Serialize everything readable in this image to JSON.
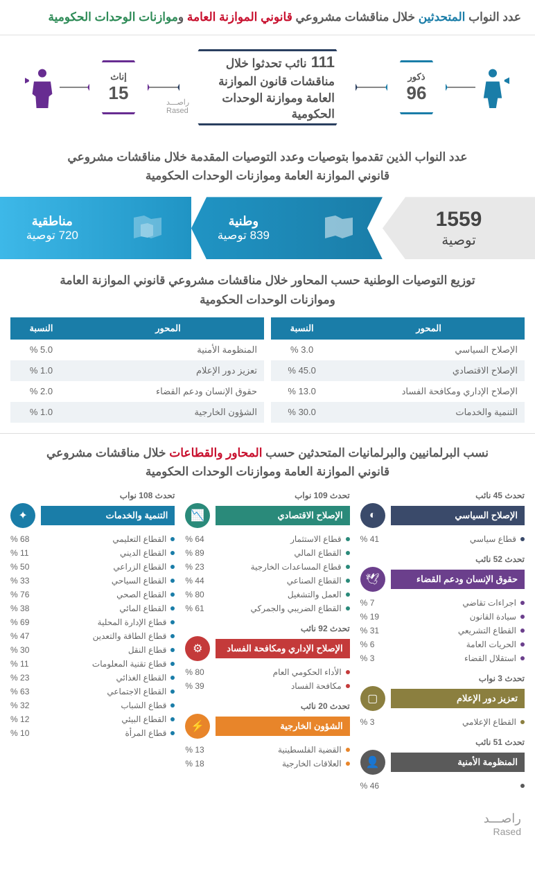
{
  "header": {
    "pre": "عدد النواب ",
    "highlight1": "المتحدثين",
    "mid": " خلال مناقشات مشروعي ",
    "highlight2": "قانوني الموازنة العامة",
    "and": " و",
    "highlight3": "موازنات الوحدات الحكومية"
  },
  "speakers": {
    "male_label": "ذكور",
    "male_count": "96",
    "female_label": "إناث",
    "female_count": "15",
    "center_count": "111 ",
    "center_text1": "نائب تحدثوا",
    "center_text2": " خلال مناقشات قانون الموازنة العامة وموازنة الوحدات الحكومية",
    "rased_ar": "راصـــد",
    "rased_en": "Rased"
  },
  "rec_header": {
    "pre": "عدد النواب الذين ",
    "hl1": "تقدموا بتوصيات",
    "mid": " وعدد التوصيات المقدمة خلال مناقشات مشروعي",
    "hl2": "قانوني الموازنة العامة",
    "and": " و",
    "hl3": "موازنات الوحدات الحكومية"
  },
  "recommendations": {
    "total": "1559",
    "total_label": "توصية",
    "national_label": "وطنية",
    "national_count": "839 توصية",
    "regional_label": "مناطقية",
    "regional_count": "720 توصية"
  },
  "dist_header": {
    "pre": "توزيع ",
    "hl1": "التوصيات الوطنية حسب المحاور",
    "mid": " خلال مناقشات مشروعي ",
    "hl2": "قانوني الموازنة العامة",
    "and": " و",
    "hl3": "موازنات الوحدات الحكومية"
  },
  "table_headers": {
    "axis": "المحور",
    "percent": "النسبة"
  },
  "table1": [
    {
      "axis": "الإصلاح السياسي",
      "pct": "3.0 %"
    },
    {
      "axis": "الإصلاح الاقتصادي",
      "pct": "45.0 %"
    },
    {
      "axis": "الإصلاح الإداري ومكافحة الفساد",
      "pct": "13.0 %"
    },
    {
      "axis": "التنمية والخدمات",
      "pct": "30.0 %"
    }
  ],
  "table2": [
    {
      "axis": "المنظومة الأمنية",
      "pct": "5.0 %"
    },
    {
      "axis": "تعزيز دور الإعلام",
      "pct": "1.0 %"
    },
    {
      "axis": "حقوق الإنسان ودعم القضاء",
      "pct": "2.0 %"
    },
    {
      "axis": "الشؤون الخارجية",
      "pct": "1.0 %"
    }
  ],
  "sectors_header": {
    "pre": "نسب البرلمانيين والبرلمانيات المتحدثين حسب ",
    "hl1": "المحاور والقطاعات",
    "mid": " خلال مناقشات مشروعي ",
    "hl2": "قانوني الموازنة العامة",
    "and": " و",
    "hl3": "موازنات الوحدات الحكومية"
  },
  "sections": {
    "political": {
      "count": "تحدث 45 نائب",
      "title": "الإصلاح السياسي",
      "items": [
        {
          "n": "قطاع سياسي",
          "p": "41 %"
        }
      ]
    },
    "hr": {
      "count": "تحدث 52 نائب",
      "title": "حقوق الإنسان ودعم القضاء",
      "items": [
        {
          "n": "اجراءات تقاضي",
          "p": "7 %"
        },
        {
          "n": "سيادة القانون",
          "p": "19 %"
        },
        {
          "n": "القطاع التشريعي",
          "p": "31 %"
        },
        {
          "n": "الحريات العامة",
          "p": "6 %"
        },
        {
          "n": "استقلال القضاء",
          "p": "3 %"
        }
      ]
    },
    "media": {
      "count": "تحدث 3 نواب",
      "title": "تعزيز دور الإعلام",
      "items": [
        {
          "n": "القطاع الإعلامي",
          "p": "3 %"
        }
      ]
    },
    "security": {
      "count": "تحدث 51 نائب",
      "title": "المنظومة الأمنية",
      "items": [
        {
          "n": "",
          "p": "46 %"
        }
      ]
    },
    "economic": {
      "count": "تحدث 109 نواب",
      "title": "الإصلاح الاقتصادي",
      "items": [
        {
          "n": "قطاع الاستثمار",
          "p": "64 %"
        },
        {
          "n": "القطاع المالي",
          "p": "89 %"
        },
        {
          "n": "قطاع المساعدات الخارجية",
          "p": "23 %"
        },
        {
          "n": "القطاع الصناعي",
          "p": "44 %"
        },
        {
          "n": "العمل والتشغيل",
          "p": "80 %"
        },
        {
          "n": "القطاع الضريبي والجمركي",
          "p": "61 %"
        }
      ]
    },
    "admin": {
      "count": "تحدث 92 نائب",
      "title": "الإصلاح الإداري ومكافحة الفساد",
      "items": [
        {
          "n": "الأداء الحكومي العام",
          "p": "80 %"
        },
        {
          "n": "مكافحة الفساد",
          "p": "39 %"
        }
      ]
    },
    "foreign": {
      "count": "تحدث 20 نائب",
      "title": "الشؤون الخارجية",
      "items": [
        {
          "n": "القضية الفلسطينية",
          "p": "13 %"
        },
        {
          "n": "العلاقات الخارجية",
          "p": "18 %"
        }
      ]
    },
    "dev": {
      "count": "تحدث 108 نواب",
      "title": "التنمية والخدمات",
      "items": [
        {
          "n": "القطاع التعليمي",
          "p": "68 %"
        },
        {
          "n": "القطاع الديني",
          "p": "11 %"
        },
        {
          "n": "القطاع الزراعي",
          "p": "50 %"
        },
        {
          "n": "القطاع السياحي",
          "p": "33 %"
        },
        {
          "n": "القطاع الصحي",
          "p": "76 %"
        },
        {
          "n": "القطاع المائي",
          "p": "38 %"
        },
        {
          "n": "قطاع الإدارة المحلية",
          "p": "69 %"
        },
        {
          "n": "قطاع الطاقة والتعدين",
          "p": "47 %"
        },
        {
          "n": "قطاع النقل",
          "p": "30 %"
        },
        {
          "n": "قطاع تقنية المعلومات",
          "p": "11 %"
        },
        {
          "n": "القطاع الغذائي",
          "p": "23 %"
        },
        {
          "n": "القطاع الاجتماعي",
          "p": "63 %"
        },
        {
          "n": "قطاع الشباب",
          "p": "32 %"
        },
        {
          "n": "القطاع البيئي",
          "p": "12 %"
        },
        {
          "n": "قطاع المرأة",
          "p": "10 %"
        }
      ]
    }
  },
  "footer": {
    "ar": "راصـــد",
    "en": "Rased"
  }
}
